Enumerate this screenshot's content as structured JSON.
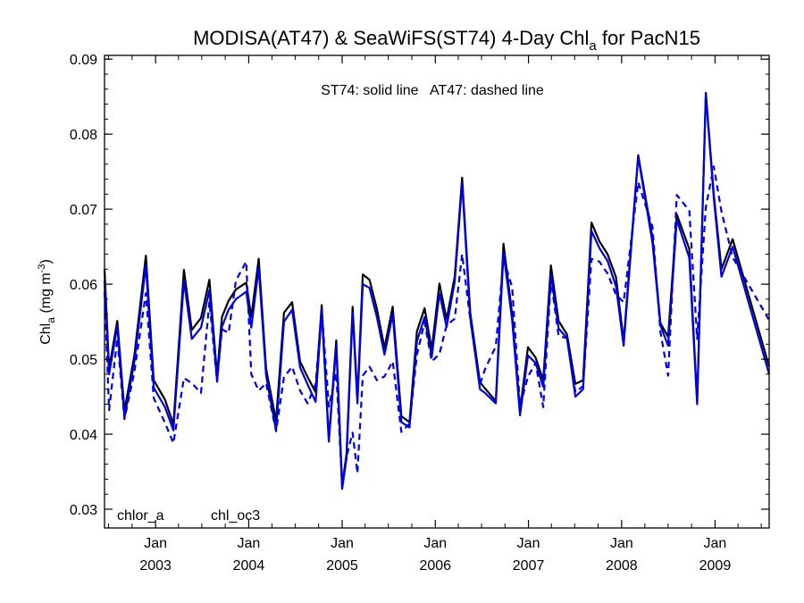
{
  "chart_data": {
    "type": "line",
    "title": {
      "main": "MODISA(AT47) & SeaWiFS(ST74) 4-Day Chl",
      "sub": "a",
      "tail": " for PacN15"
    },
    "ylabel": {
      "main": "Chl",
      "sub": "a",
      "unit": " (mg m",
      "sup": "-3",
      "close": ")"
    },
    "annotation": "ST74: solid line   AT47: dashed line",
    "ylim": [
      0.0275,
      0.0905
    ],
    "yticks": [
      "0.03",
      "0.04",
      "0.05",
      "0.06",
      "0.07",
      "0.08",
      "0.09"
    ],
    "xlim": [
      "2002-06-15",
      "2009-08-01"
    ],
    "xticks": [
      {
        "date": "2003-01-01",
        "month": "Jan",
        "year": "2003"
      },
      {
        "date": "2004-01-01",
        "month": "Jan",
        "year": "2004"
      },
      {
        "date": "2005-01-01",
        "month": "Jan",
        "year": "2005"
      },
      {
        "date": "2006-01-01",
        "month": "Jan",
        "year": "2006"
      },
      {
        "date": "2007-01-01",
        "month": "Jan",
        "year": "2007"
      },
      {
        "date": "2008-01-01",
        "month": "Jan",
        "year": "2008"
      },
      {
        "date": "2009-01-01",
        "month": "Jan",
        "year": "2009"
      }
    ],
    "legend": [
      {
        "label": "chlor_a",
        "color": "#000000"
      },
      {
        "label": "chl_oc3",
        "color": "#0000e6"
      }
    ],
    "legend_position": "bottom-left",
    "colors": {
      "chlor_a": "#000000",
      "chl_oc3": "#0000e6"
    },
    "x": [
      "2002-06-15",
      "2002-07-03",
      "2002-08-04",
      "2002-09-01",
      "2002-10-10",
      "2002-11-24",
      "2002-12-25",
      "2003-02-07",
      "2003-03-12",
      "2003-04-22",
      "2003-05-23",
      "2003-06-28",
      "2003-07-31",
      "2003-08-30",
      "2003-09-18",
      "2003-10-14",
      "2003-11-12",
      "2003-12-22",
      "2004-01-11",
      "2004-02-09",
      "2004-03-09",
      "2004-04-17",
      "2004-05-18",
      "2004-06-19",
      "2004-07-20",
      "2004-08-19",
      "2004-09-19",
      "2004-10-13",
      "2004-11-10",
      "2004-12-09",
      "2005-01-01",
      "2005-01-18",
      "2005-02-11",
      "2005-03-02",
      "2005-03-23",
      "2005-04-18",
      "2005-05-17",
      "2005-06-16",
      "2005-07-18",
      "2005-08-21",
      "2005-09-22",
      "2005-10-21",
      "2005-11-20",
      "2005-12-18",
      "2006-01-17",
      "2006-02-14",
      "2006-03-18",
      "2006-04-16",
      "2006-05-18",
      "2006-06-25",
      "2006-07-15",
      "2006-08-26",
      "2006-09-25",
      "2006-10-29",
      "2006-11-29",
      "2006-12-30",
      "2007-01-29",
      "2007-02-28",
      "2007-03-30",
      "2007-04-29",
      "2007-06-01",
      "2007-07-04",
      "2007-08-03",
      "2007-09-05",
      "2007-10-06",
      "2007-11-07",
      "2007-12-10",
      "2008-01-09",
      "2008-03-06",
      "2008-05-01",
      "2008-06-01",
      "2008-07-01",
      "2008-08-04",
      "2008-09-22",
      "2008-10-23",
      "2008-11-26",
      "2008-12-27",
      "2009-01-26",
      "2009-03-11",
      "2009-08-01"
    ],
    "series": [
      {
        "name": "chlor_a",
        "style": "solid",
        "color": "#000000",
        "values": [
          0.062,
          0.0487,
          0.0551,
          0.0431,
          0.0505,
          0.0638,
          0.0472,
          0.0446,
          0.0413,
          0.0619,
          0.0539,
          0.0555,
          0.0606,
          0.0478,
          0.0556,
          0.0578,
          0.0593,
          0.0602,
          0.0556,
          0.0634,
          0.0487,
          0.0418,
          0.0562,
          0.0576,
          0.0497,
          0.0476,
          0.0456,
          0.0572,
          0.0393,
          0.0525,
          0.0331,
          0.0374,
          0.057,
          0.0447,
          0.0613,
          0.0606,
          0.0567,
          0.0515,
          0.057,
          0.0424,
          0.0416,
          0.0537,
          0.0568,
          0.0513,
          0.0601,
          0.0553,
          0.061,
          0.0742,
          0.0562,
          0.0469,
          0.0461,
          0.0444,
          0.0654,
          0.056,
          0.0431,
          0.0516,
          0.0502,
          0.0472,
          0.0625,
          0.0551,
          0.0533,
          0.0467,
          0.0472,
          0.0682,
          0.0657,
          0.064,
          0.0609,
          0.0524,
          0.0772,
          0.0662,
          0.0548,
          0.053,
          0.0693,
          0.0647,
          0.0442,
          0.0855,
          0.072,
          0.062,
          0.066,
          0.049
        ]
      },
      {
        "name": "chl_oc3",
        "style": "solid",
        "color": "#0000e6",
        "values": [
          0.0605,
          0.048,
          0.0544,
          0.0422,
          0.0497,
          0.0625,
          0.0462,
          0.0436,
          0.0405,
          0.0605,
          0.0527,
          0.0542,
          0.0592,
          0.0471,
          0.0543,
          0.0566,
          0.058,
          0.059,
          0.0542,
          0.0622,
          0.0478,
          0.0405,
          0.055,
          0.0566,
          0.0489,
          0.0466,
          0.0443,
          0.0564,
          0.039,
          0.0518,
          0.0327,
          0.0368,
          0.0562,
          0.0441,
          0.06,
          0.0595,
          0.0556,
          0.0506,
          0.056,
          0.0416,
          0.0409,
          0.0524,
          0.0556,
          0.0503,
          0.0588,
          0.0543,
          0.0603,
          0.0735,
          0.0555,
          0.046,
          0.0455,
          0.0441,
          0.0642,
          0.0552,
          0.0425,
          0.0505,
          0.0495,
          0.0463,
          0.0613,
          0.0541,
          0.0528,
          0.045,
          0.046,
          0.0671,
          0.0648,
          0.0631,
          0.0597,
          0.0518,
          0.077,
          0.0655,
          0.0545,
          0.0518,
          0.0686,
          0.0635,
          0.044,
          0.0853,
          0.0715,
          0.061,
          0.065,
          0.048
        ]
      },
      {
        "name": "chlor_a (AT47)",
        "style": "dashed",
        "color": "#000000",
        "values": [
          0.0598,
          0.044,
          0.0535,
          0.0425,
          0.049,
          0.0595,
          0.0455,
          0.042,
          0.0392,
          0.0478,
          0.0472,
          0.0458,
          0.0582,
          0.0475,
          0.0543,
          0.0538,
          0.061,
          0.063,
          0.0485,
          0.0462,
          0.0472,
          0.0408,
          0.048,
          0.0492,
          0.0461,
          0.0445,
          0.047,
          0.057,
          0.044,
          0.0485,
          0.0336,
          0.0372,
          0.0405,
          0.0352,
          0.048,
          0.0493,
          0.0475,
          0.048,
          0.05,
          0.0406,
          0.0418,
          0.051,
          0.0553,
          0.05,
          0.051,
          0.055,
          0.0558,
          0.0645,
          0.0558,
          0.047,
          0.049,
          0.052,
          0.064,
          0.06,
          0.044,
          0.048,
          0.0498,
          0.044,
          0.061,
          0.0535,
          0.0532,
          0.046,
          0.0468,
          0.0638,
          0.0632,
          0.0618,
          0.059,
          0.058,
          0.074,
          0.068,
          0.054,
          0.0482,
          0.072,
          0.0698,
          0.053,
          0.0705,
          0.076,
          0.07,
          0.064,
          0.0555
        ]
      },
      {
        "name": "chl_oc3 (AT47)",
        "style": "dashed",
        "color": "#0000e6",
        "values": [
          0.059,
          0.0432,
          0.0528,
          0.042,
          0.0483,
          0.0588,
          0.0448,
          0.0415,
          0.0388,
          0.0475,
          0.0468,
          0.0455,
          0.0577,
          0.047,
          0.054,
          0.0535,
          0.0605,
          0.063,
          0.048,
          0.0458,
          0.0468,
          0.0404,
          0.0476,
          0.049,
          0.0458,
          0.0441,
          0.0467,
          0.0566,
          0.0437,
          0.0482,
          0.0333,
          0.037,
          0.0402,
          0.0348,
          0.0478,
          0.049,
          0.0472,
          0.0477,
          0.0497,
          0.0403,
          0.0414,
          0.0506,
          0.0549,
          0.0497,
          0.0507,
          0.0545,
          0.0554,
          0.064,
          0.0553,
          0.0466,
          0.0487,
          0.0517,
          0.0634,
          0.0596,
          0.0437,
          0.0477,
          0.0495,
          0.0436,
          0.0606,
          0.0531,
          0.0528,
          0.0456,
          0.0464,
          0.0634,
          0.063,
          0.0614,
          0.0586,
          0.0576,
          0.0736,
          0.0676,
          0.0536,
          0.0478,
          0.0719,
          0.0698,
          0.0527,
          0.0703,
          0.0757,
          0.0697,
          0.0636,
          0.0552
        ]
      }
    ]
  }
}
